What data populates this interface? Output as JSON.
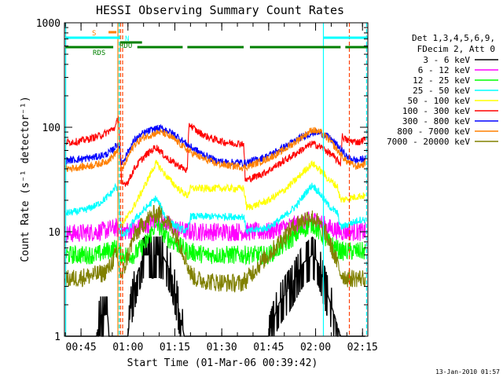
{
  "chart_data": {
    "type": "line",
    "title": "HESSI Observing Summary Count Rates",
    "xlabel": "Start Time (01-Mar-06 00:39:42)",
    "ylabel": "Count Rate (s⁻¹ detector⁻¹)",
    "ylog": true,
    "ylim": [
      1,
      1000
    ],
    "xlim_minutes": [
      39.7,
      136.7
    ],
    "x_ticks": [
      {
        "t": 45,
        "label": "00:45"
      },
      {
        "t": 60,
        "label": "01:00"
      },
      {
        "t": 75,
        "label": "01:15"
      },
      {
        "t": 90,
        "label": "01:30"
      },
      {
        "t": 105,
        "label": "01:45"
      },
      {
        "t": 120,
        "label": "02:00"
      },
      {
        "t": 135,
        "label": "02:15"
      }
    ],
    "y_ticks": [
      {
        "v": 1,
        "label": "1"
      },
      {
        "v": 10,
        "label": "10"
      },
      {
        "v": 100,
        "label": "100"
      },
      {
        "v": 1000,
        "label": "1000"
      }
    ],
    "legend_header": [
      "Det 1,3,4,5,6,9,",
      "FDecim 2, Att 0"
    ],
    "legend_placement": "right",
    "footer": "13-Jan-2010 01:57",
    "series": [
      {
        "name": "3 - 6 keV",
        "color": "#000000",
        "points": [
          [
            40,
            1
          ],
          [
            50,
            1
          ],
          [
            51,
            1.6
          ],
          [
            53.5,
            1.6
          ],
          [
            54,
            1
          ],
          [
            60,
            1
          ],
          [
            61,
            2
          ],
          [
            63,
            4
          ],
          [
            65,
            6
          ],
          [
            71,
            6
          ],
          [
            74,
            4
          ],
          [
            76,
            2
          ],
          [
            78,
            1
          ],
          [
            83,
            1
          ],
          [
            86,
            1
          ],
          [
            88,
            1
          ],
          [
            96,
            1
          ],
          [
            98,
            1
          ],
          [
            105,
            1
          ],
          [
            108,
            2
          ],
          [
            112,
            3
          ],
          [
            116,
            5
          ],
          [
            119,
            6
          ],
          [
            121,
            5
          ],
          [
            123,
            3
          ],
          [
            126,
            1.6
          ],
          [
            128,
            1
          ],
          [
            136,
            1
          ]
        ]
      },
      {
        "name": "6 - 12 keV",
        "color": "#ff00ff",
        "points": [
          [
            40,
            9.5
          ],
          [
            50,
            10
          ],
          [
            53,
            10.3
          ],
          [
            56,
            11
          ],
          [
            58,
            10
          ],
          [
            62,
            10.5
          ],
          [
            66,
            11.5
          ],
          [
            69,
            13
          ],
          [
            72,
            12
          ],
          [
            76,
            10.5
          ],
          [
            79,
            10
          ],
          [
            85,
            10
          ],
          [
            97,
            10
          ],
          [
            101,
            10
          ],
          [
            105,
            10
          ],
          [
            110,
            11
          ],
          [
            115,
            12
          ],
          [
            119,
            13
          ],
          [
            121,
            12.5
          ],
          [
            124,
            11
          ],
          [
            128,
            10
          ],
          [
            136,
            10
          ]
        ]
      },
      {
        "name": "12 - 25 keV",
        "color": "#00ff00",
        "points": [
          [
            40,
            6
          ],
          [
            50,
            6
          ],
          [
            53,
            6.5
          ],
          [
            56,
            7
          ],
          [
            58,
            6
          ],
          [
            62,
            6
          ],
          [
            66,
            8
          ],
          [
            69,
            12
          ],
          [
            72,
            9
          ],
          [
            76,
            7.5
          ],
          [
            79,
            6.5
          ],
          [
            85,
            6
          ],
          [
            97,
            6
          ],
          [
            101,
            6
          ],
          [
            105,
            6
          ],
          [
            110,
            7.5
          ],
          [
            115,
            10
          ],
          [
            119,
            12
          ],
          [
            121,
            10
          ],
          [
            124,
            8
          ],
          [
            128,
            6.5
          ],
          [
            136,
            6.5
          ]
        ]
      },
      {
        "name": "25 - 50 keV",
        "color": "#00ffff",
        "points": [
          [
            40,
            15
          ],
          [
            46,
            16
          ],
          [
            50,
            18
          ],
          [
            53,
            21
          ],
          [
            55,
            24
          ],
          [
            56,
            27
          ],
          [
            57,
            24
          ],
          [
            58,
            9
          ],
          [
            60,
            10
          ],
          [
            62,
            13
          ],
          [
            65,
            16
          ],
          [
            69,
            21
          ],
          [
            72,
            14
          ],
          [
            74,
            12
          ],
          [
            76,
            11
          ],
          [
            79,
            10
          ],
          [
            80,
            14
          ],
          [
            85,
            14
          ],
          [
            90,
            14
          ],
          [
            96,
            14
          ],
          [
            97,
            14
          ],
          [
            98,
            10
          ],
          [
            105,
            11
          ],
          [
            110,
            14
          ],
          [
            114,
            18
          ],
          [
            117,
            24
          ],
          [
            119,
            28
          ],
          [
            121,
            24
          ],
          [
            124,
            18
          ],
          [
            127,
            15
          ],
          [
            128,
            11
          ],
          [
            134,
            13
          ],
          [
            136,
            13
          ]
        ]
      },
      {
        "name": "50 - 100 keV",
        "color": "#ffff00",
        "points": [
          [
            58,
            12
          ],
          [
            60,
            14
          ],
          [
            63,
            20
          ],
          [
            66,
            30
          ],
          [
            68,
            40
          ],
          [
            69,
            45
          ],
          [
            70,
            42
          ],
          [
            72,
            35
          ],
          [
            74,
            30
          ],
          [
            76,
            26
          ],
          [
            79,
            22
          ],
          [
            80,
            26
          ],
          [
            85,
            26
          ],
          [
            90,
            26
          ],
          [
            96,
            26
          ],
          [
            97,
            26
          ],
          [
            98,
            17
          ],
          [
            101,
            18
          ],
          [
            105,
            20
          ],
          [
            110,
            25
          ],
          [
            114,
            32
          ],
          [
            117,
            40
          ],
          [
            119,
            45
          ],
          [
            121,
            40
          ],
          [
            124,
            32
          ],
          [
            127,
            27
          ],
          [
            128,
            20
          ],
          [
            134,
            22
          ],
          [
            136,
            22
          ]
        ]
      },
      {
        "name": "100 - 300 keV",
        "color": "#ff0000",
        "points": [
          [
            40,
            72
          ],
          [
            44,
            73
          ],
          [
            48,
            78
          ],
          [
            52,
            85
          ],
          [
            54,
            92
          ],
          [
            56,
            100
          ],
          [
            57,
            128
          ],
          [
            57.5,
            65
          ],
          [
            58,
            28
          ],
          [
            60,
            30
          ],
          [
            62,
            40
          ],
          [
            64,
            48
          ],
          [
            66,
            55
          ],
          [
            69,
            65
          ],
          [
            72,
            52
          ],
          [
            75,
            45
          ],
          [
            78,
            40
          ],
          [
            79,
            38
          ],
          [
            79.5,
            108
          ],
          [
            82,
            92
          ],
          [
            85,
            82
          ],
          [
            88,
            76
          ],
          [
            91,
            72
          ],
          [
            94,
            70
          ],
          [
            97,
            70
          ],
          [
            97.5,
            31
          ],
          [
            100,
            33
          ],
          [
            104,
            37
          ],
          [
            108,
            44
          ],
          [
            112,
            52
          ],
          [
            116,
            62
          ],
          [
            119,
            70
          ],
          [
            122,
            64
          ],
          [
            125,
            55
          ],
          [
            127,
            48
          ],
          [
            128,
            45
          ],
          [
            128.5,
            82
          ],
          [
            130,
            75
          ],
          [
            134,
            72
          ],
          [
            136,
            78
          ]
        ]
      },
      {
        "name": "300 - 800 keV",
        "color": "#0000ff",
        "points": [
          [
            40,
            48
          ],
          [
            46,
            50
          ],
          [
            50,
            52
          ],
          [
            53,
            55
          ],
          [
            55,
            60
          ],
          [
            57,
            72
          ],
          [
            58,
            45
          ],
          [
            60,
            58
          ],
          [
            62,
            75
          ],
          [
            65,
            88
          ],
          [
            68,
            95
          ],
          [
            70,
            98
          ],
          [
            72,
            95
          ],
          [
            75,
            85
          ],
          [
            78,
            72
          ],
          [
            80,
            65
          ],
          [
            84,
            55
          ],
          [
            88,
            48
          ],
          [
            92,
            46
          ],
          [
            96,
            46
          ],
          [
            97,
            45
          ],
          [
            100,
            48
          ],
          [
            104,
            52
          ],
          [
            108,
            60
          ],
          [
            112,
            70
          ],
          [
            116,
            82
          ],
          [
            120,
            90
          ],
          [
            123,
            85
          ],
          [
            126,
            72
          ],
          [
            128,
            62
          ],
          [
            130,
            52
          ],
          [
            133,
            48
          ],
          [
            136,
            50
          ]
        ]
      },
      {
        "name": "800 - 7000 keV",
        "color": "#ff8000",
        "points": [
          [
            40,
            40
          ],
          [
            46,
            42
          ],
          [
            50,
            44
          ],
          [
            53,
            47
          ],
          [
            55,
            52
          ],
          [
            57,
            62
          ],
          [
            58,
            38
          ],
          [
            60,
            52
          ],
          [
            62,
            68
          ],
          [
            65,
            80
          ],
          [
            68,
            86
          ],
          [
            70,
            90
          ],
          [
            72,
            86
          ],
          [
            75,
            76
          ],
          [
            78,
            64
          ],
          [
            80,
            58
          ],
          [
            84,
            50
          ],
          [
            88,
            45
          ],
          [
            92,
            43
          ],
          [
            96,
            42
          ],
          [
            97,
            41
          ],
          [
            100,
            44
          ],
          [
            104,
            49
          ],
          [
            108,
            56
          ],
          [
            112,
            67
          ],
          [
            116,
            82
          ],
          [
            119,
            95
          ],
          [
            122,
            88
          ],
          [
            125,
            72
          ],
          [
            127,
            60
          ],
          [
            128,
            55
          ],
          [
            130,
            47
          ],
          [
            133,
            42
          ],
          [
            136,
            45
          ]
        ]
      },
      {
        "name": "7000 - 20000 keV",
        "color": "#808000",
        "points": [
          [
            40,
            3.5
          ],
          [
            44,
            3.6
          ],
          [
            48,
            3.8
          ],
          [
            52,
            4
          ],
          [
            54,
            4.5
          ],
          [
            56,
            6
          ],
          [
            57,
            5
          ],
          [
            58,
            3.6
          ],
          [
            60,
            6
          ],
          [
            62,
            9
          ],
          [
            65,
            12
          ],
          [
            68,
            14.5
          ],
          [
            70,
            15
          ],
          [
            72,
            13
          ],
          [
            75,
            10
          ],
          [
            78,
            6
          ],
          [
            80,
            4
          ],
          [
            82,
            3.5
          ],
          [
            88,
            3.3
          ],
          [
            96,
            3.2
          ],
          [
            98,
            3.5
          ],
          [
            101,
            4.5
          ],
          [
            105,
            6
          ],
          [
            110,
            9
          ],
          [
            114,
            12
          ],
          [
            118,
            14
          ],
          [
            120,
            13
          ],
          [
            123,
            10
          ],
          [
            126,
            6
          ],
          [
            128,
            4
          ],
          [
            130,
            3.6
          ],
          [
            136,
            3.6
          ]
        ]
      }
    ],
    "state_bars": [
      {
        "label": "S",
        "color": "#ff8000",
        "segments": [
          [
            53.8,
            56.3
          ]
        ]
      },
      {
        "label": "N",
        "color": "#00ffff",
        "segments": [
          [
            40,
            57.5
          ],
          [
            122.5,
            136.7
          ]
        ]
      },
      {
        "label": "RDO",
        "color": "#008000",
        "segments": [
          [
            57.5,
            64.5
          ]
        ]
      },
      {
        "label": "RDS",
        "color": "#008000",
        "segments": [
          [
            40,
            55.3
          ],
          [
            63,
            77.5
          ],
          [
            79,
            97
          ],
          [
            99,
            128
          ],
          [
            129.5,
            136.7
          ]
        ]
      }
    ],
    "vertical_markers": [
      {
        "t": 40.1,
        "color": "#00ffff",
        "dashed": false
      },
      {
        "t": 57.2,
        "color": "#00ffff",
        "dashed": true
      },
      {
        "t": 57.6,
        "color": "#ff4000",
        "dashed": true
      },
      {
        "t": 58.3,
        "color": "#ff4000",
        "dashed": true
      },
      {
        "t": 56.8,
        "color": "#ff8000",
        "dashed": false
      },
      {
        "t": 122.5,
        "color": "#00ffff",
        "dashed": false
      },
      {
        "t": 130.8,
        "color": "#ff4000",
        "dashed": true
      },
      {
        "t": 136.3,
        "color": "#00ffff",
        "dashed": true
      }
    ]
  }
}
